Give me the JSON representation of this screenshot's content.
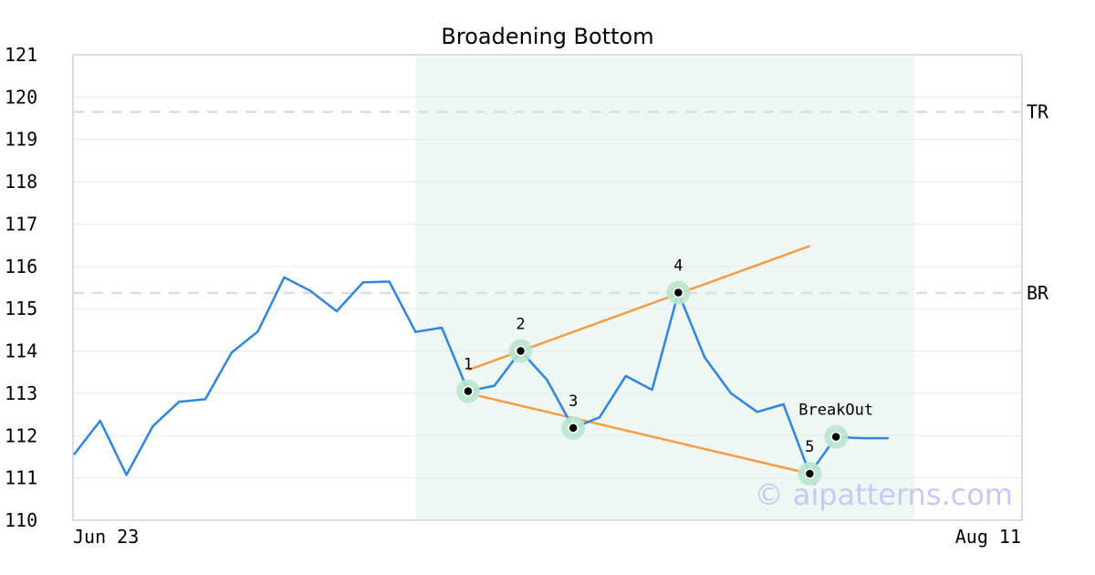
{
  "chart_data": {
    "type": "line",
    "title": "Broadening Bottom",
    "xlabel": "",
    "ylabel": "",
    "ylim": [
      110,
      121
    ],
    "yticks": [
      110,
      111,
      112,
      113,
      114,
      115,
      116,
      117,
      118,
      119,
      120,
      121
    ],
    "xtick_labels": {
      "start": "Jun 23",
      "end": "Aug 11"
    },
    "grid": true,
    "series": [
      {
        "color": "#2e86de",
        "values": [
          111.55,
          112.35,
          111.07,
          112.22,
          112.8,
          112.86,
          113.96,
          114.46,
          115.74,
          115.42,
          114.94,
          115.62,
          115.64,
          114.45,
          114.55,
          113.05,
          113.18,
          114.0,
          113.32,
          112.18,
          112.43,
          113.41,
          113.08,
          115.38,
          113.85,
          113.0,
          112.56,
          112.74,
          111.1,
          111.97,
          111.94,
          111.94
        ]
      }
    ],
    "pattern_region": {
      "start_index": 13,
      "end_index": 32,
      "color": "#eef7f3"
    },
    "reference_lines": [
      {
        "label": "TR",
        "value": 119.65
      },
      {
        "label": "BR",
        "value": 115.37
      }
    ],
    "pattern_points": [
      {
        "label": "1",
        "index": 15,
        "value": 113.05
      },
      {
        "label": "2",
        "index": 17,
        "value": 114.0
      },
      {
        "label": "3",
        "index": 19,
        "value": 112.18
      },
      {
        "label": "4",
        "index": 23,
        "value": 115.38
      },
      {
        "label": "5",
        "index": 28,
        "value": 111.1
      },
      {
        "label": "",
        "index": 29,
        "value": 111.97
      }
    ],
    "breakout_label": "BreakOut",
    "trendlines": [
      {
        "color": "#f59b42",
        "from": {
          "index": 15,
          "value": 113.55
        },
        "to": {
          "index": 28,
          "value": 116.48
        }
      },
      {
        "color": "#f59b42",
        "from": {
          "index": 15,
          "value": 113.0
        },
        "to": {
          "index": 28,
          "value": 111.1
        }
      }
    ],
    "colors": {
      "line": "#2e86de",
      "trend": "#f59b42",
      "region": "#eef7f3",
      "marker_halo": "#b9e6cf",
      "grid": "#e8e8e8",
      "ref": "#dddddd"
    }
  },
  "watermark": "© aipatterns.com"
}
